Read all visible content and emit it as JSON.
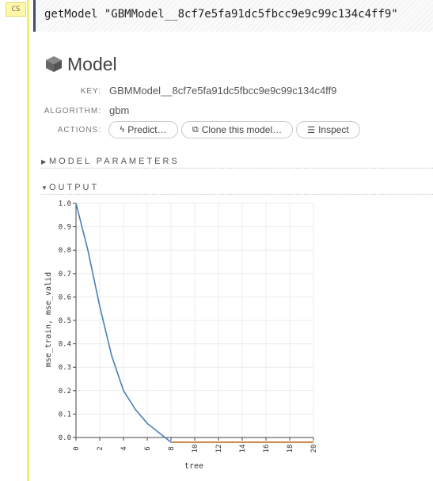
{
  "cell": {
    "badge": "CS",
    "code": "getModel \"GBMModel__8cf7e5fa91dc5fbcc9e9c99c134c4ff9\""
  },
  "model": {
    "title": "Model",
    "key_label": "KEY:",
    "key_value": "GBMModel__8cf7e5fa91dc5fbcc9e9c99c134c4ff9",
    "algorithm_label": "ALGORITHM:",
    "algorithm_value": "gbm",
    "actions_label": "ACTIONS:",
    "actions": {
      "predict": "Predict…",
      "clone": "Clone this model…",
      "inspect": "Inspect"
    }
  },
  "sections": {
    "parameters": "MODEL PARAMETERS",
    "output": "OUTPUT"
  },
  "chart_data": {
    "type": "line",
    "xlabel": "tree",
    "ylabel": "mse_train, mse_valid",
    "xlim": [
      0,
      20
    ],
    "ylim": [
      0,
      1
    ],
    "xticks": [
      0,
      2,
      4,
      6,
      8,
      10,
      12,
      14,
      16,
      18,
      20
    ],
    "yticks": [
      0.0,
      0.1,
      0.2,
      0.3,
      0.4,
      0.5,
      0.6,
      0.7,
      0.8,
      0.9,
      1.0
    ],
    "grid": true,
    "series": [
      {
        "color": "#4a7fb5",
        "x": [
          0,
          1,
          2,
          3,
          4,
          5,
          6,
          7,
          8,
          9,
          10,
          11,
          12,
          13,
          14,
          15,
          16,
          17,
          18,
          19,
          20
        ],
        "values": [
          1.0,
          0.8,
          0.56,
          0.35,
          0.2,
          0.12,
          0.06,
          0.02,
          -0.02,
          -0.02,
          -0.02,
          -0.02,
          -0.02,
          -0.02,
          -0.02,
          -0.02,
          -0.02,
          -0.02,
          -0.02,
          -0.02,
          -0.02
        ]
      },
      {
        "color": "#e07b2b",
        "x": [
          8,
          9,
          10,
          11,
          12,
          13,
          14,
          15,
          16,
          17,
          18,
          19,
          20
        ],
        "values": [
          -0.02,
          -0.02,
          -0.02,
          -0.02,
          -0.02,
          -0.02,
          -0.02,
          -0.02,
          -0.02,
          -0.02,
          -0.02,
          -0.02,
          -0.02
        ]
      }
    ]
  }
}
